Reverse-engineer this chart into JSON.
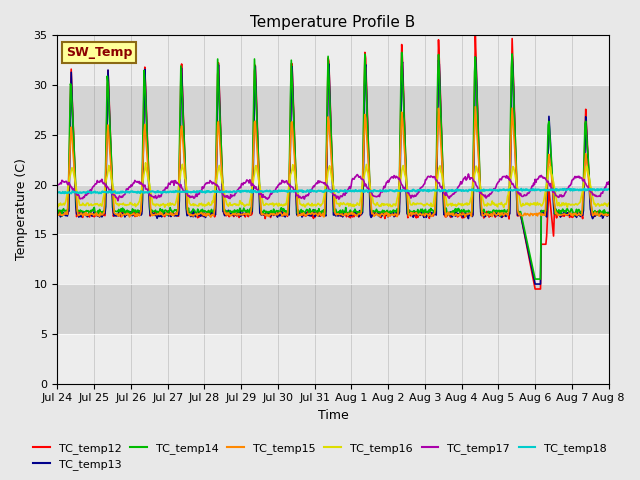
{
  "title": "Temperature Profile B",
  "xlabel": "Time",
  "ylabel": "Temperature (C)",
  "ylim": [
    0,
    35
  ],
  "x_tick_labels": [
    "Jul 24",
    "Jul 25",
    "Jul 26",
    "Jul 27",
    "Jul 28",
    "Jul 29",
    "Jul 30",
    "Jul 31",
    "Aug 1",
    "Aug 2",
    "Aug 3",
    "Aug 4",
    "Aug 5",
    "Aug 6",
    "Aug 7",
    "Aug 8"
  ],
  "annotation": "SW_Temp",
  "annotation_box_color": "#ffff99",
  "annotation_text_color": "#8B0000",
  "annotation_edge_color": "#8B6914",
  "fig_bg_color": "#e8e8e8",
  "plot_bg_color": "#d4d4d4",
  "white_band_color": "#f0f0f0",
  "series": [
    {
      "label": "TC_temp12",
      "color": "#ff0000",
      "lw": 1.2
    },
    {
      "label": "TC_temp13",
      "color": "#00008B",
      "lw": 1.2
    },
    {
      "label": "TC_temp14",
      "color": "#00bb00",
      "lw": 1.2
    },
    {
      "label": "TC_temp15",
      "color": "#ff8800",
      "lw": 1.2
    },
    {
      "label": "TC_temp16",
      "color": "#dddd00",
      "lw": 1.2
    },
    {
      "label": "TC_temp17",
      "color": "#aa00aa",
      "lw": 1.2
    },
    {
      "label": "TC_temp18",
      "color": "#00cccc",
      "lw": 1.5
    }
  ],
  "legend_ncol": 6,
  "title_fontsize": 11,
  "axis_label_fontsize": 9,
  "tick_fontsize": 8
}
